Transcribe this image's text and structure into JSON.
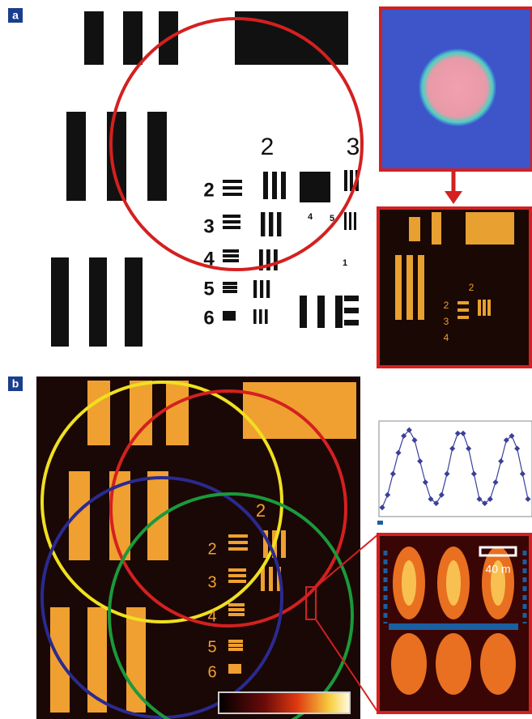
{
  "panels": [
    {
      "label": "a",
      "group_labels": [
        "2",
        "3"
      ],
      "row_labels": [
        "2",
        "3",
        "4",
        "5",
        "6"
      ],
      "small_labels": [
        "4",
        "5",
        "1"
      ],
      "inset_labels": [
        "2",
        "2",
        "3",
        "4"
      ]
    },
    {
      "label": "b",
      "group_labels": [
        "2"
      ],
      "row_labels": [
        "2",
        "3",
        "4",
        "5",
        "6"
      ],
      "scale_label": "40 m",
      "profile": {
        "type": "line",
        "color": "#3a3f9a",
        "ylim": [
          0,
          1
        ],
        "values": [
          0.05,
          0.2,
          0.45,
          0.7,
          0.9,
          0.97,
          0.85,
          0.6,
          0.35,
          0.15,
          0.1,
          0.2,
          0.45,
          0.75,
          0.93,
          0.93,
          0.75,
          0.45,
          0.15,
          0.1,
          0.15,
          0.35,
          0.6,
          0.85,
          0.9,
          0.75,
          0.45,
          0.15
        ]
      }
    }
  ]
}
